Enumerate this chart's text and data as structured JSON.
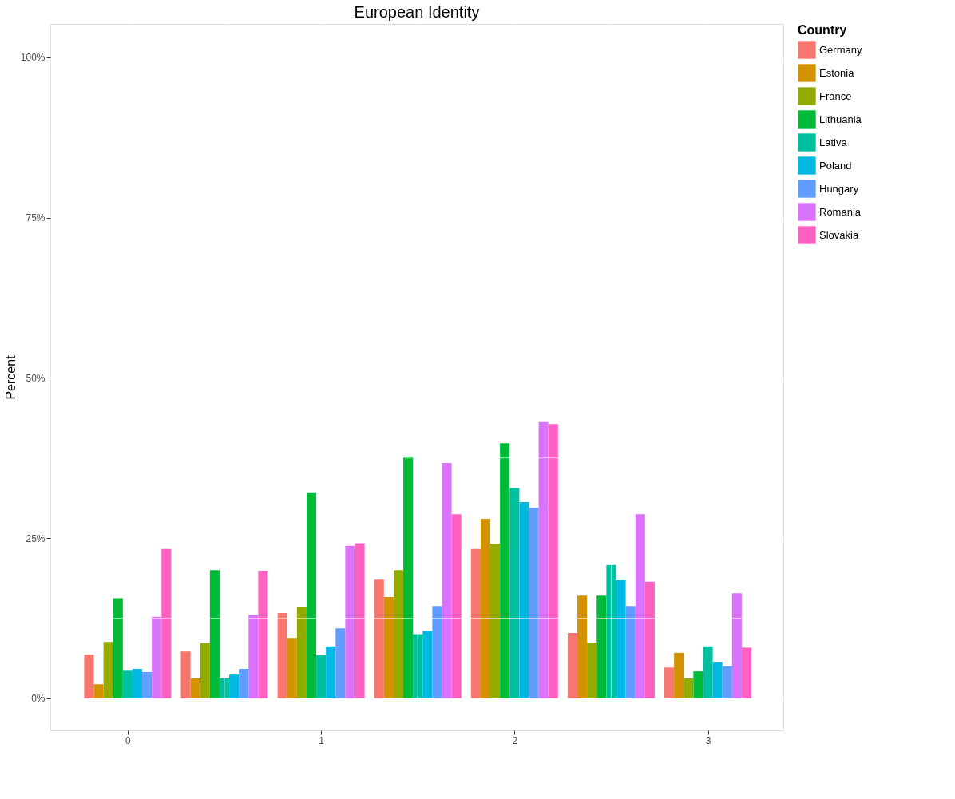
{
  "chart_data": {
    "type": "bar",
    "title": "European Identity",
    "ylabel": "Percent",
    "legend_title": "Country",
    "x": [
      0,
      0.5,
      1,
      1.5,
      2,
      2.5,
      3
    ],
    "series": [
      {
        "name": "Germany",
        "color": "#f8766d",
        "values": [
          6.8,
          7.3,
          13.3,
          18.5,
          23.3,
          10.2,
          4.8
        ]
      },
      {
        "name": "Estonia",
        "color": "#d39200",
        "values": [
          2.2,
          3.1,
          9.4,
          15.8,
          28.0,
          16.0,
          7.1
        ]
      },
      {
        "name": "France",
        "color": "#93aa00",
        "values": [
          8.8,
          8.6,
          14.3,
          20.0,
          24.1,
          8.7,
          3.1
        ]
      },
      {
        "name": "Lithuania",
        "color": "#00ba38",
        "values": [
          15.6,
          20.0,
          32.0,
          37.7,
          39.8,
          16.0,
          4.2
        ]
      },
      {
        "name": "Lativa",
        "color": "#00c19f",
        "values": [
          4.3,
          3.1,
          6.7,
          10.0,
          32.8,
          20.8,
          8.1
        ]
      },
      {
        "name": "Poland",
        "color": "#00b9e3",
        "values": [
          4.6,
          3.7,
          8.1,
          10.5,
          30.6,
          18.4,
          5.7
        ]
      },
      {
        "name": "Hungary",
        "color": "#619cff",
        "values": [
          4.1,
          4.6,
          10.9,
          14.4,
          29.7,
          14.4,
          5.0
        ]
      },
      {
        "name": "Romania",
        "color": "#db72fb",
        "values": [
          12.7,
          13.0,
          23.8,
          36.7,
          43.1,
          28.7,
          16.4
        ]
      },
      {
        "name": "Slovakia",
        "color": "#ff61c3",
        "values": [
          23.3,
          19.9,
          24.2,
          28.7,
          42.8,
          18.2,
          7.9
        ]
      }
    ],
    "xlim": [
      -0.4,
      3.39
    ],
    "xticks": [
      0,
      1,
      2,
      3
    ],
    "ylim": [
      -5,
      105.2
    ],
    "yticks": [
      {
        "value": 0,
        "label": "0%"
      },
      {
        "value": 25,
        "label": "25%"
      },
      {
        "value": 50,
        "label": "50%"
      },
      {
        "value": 75,
        "label": "75%"
      },
      {
        "value": 100,
        "label": "100%"
      }
    ],
    "grid": true,
    "legend": "right"
  }
}
